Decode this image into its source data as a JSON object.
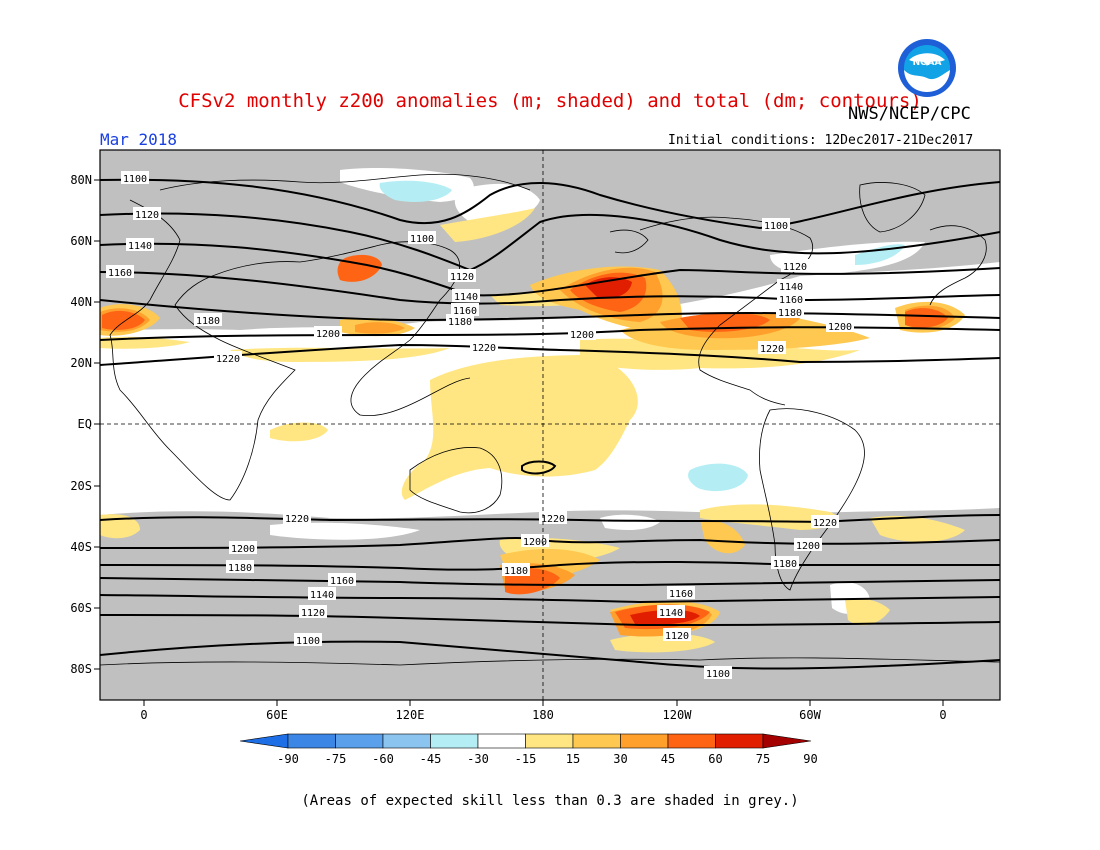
{
  "header": {
    "title": "CFSv2 monthly z200 anomalies (m; shaded) and total (dm; contours)",
    "agency": "NWS/NCEP/CPC",
    "month": "Mar 2018",
    "initial_conditions": "Initial conditions: 12Dec2017-21Dec2017",
    "logo_text": "NOAA"
  },
  "map": {
    "lat_labels": [
      "80N",
      "60N",
      "40N",
      "20N",
      "EQ",
      "20S",
      "40S",
      "60S",
      "80S"
    ],
    "lon_labels": [
      "0",
      "60E",
      "120E",
      "180",
      "120W",
      "60W",
      "0"
    ],
    "ocean_color": "#ffffff",
    "grey_color": "#c0c0c0",
    "contour_labels": [
      "1100",
      "1120",
      "1140",
      "1160",
      "1180",
      "1200",
      "1220"
    ]
  },
  "colorbar": {
    "tick_labels": [
      "-90",
      "-75",
      "-60",
      "-45",
      "-30",
      "-15",
      "15",
      "30",
      "45",
      "60",
      "75",
      "90"
    ],
    "colors": [
      "#1e6ee6",
      "#3c87e6",
      "#5aa0ea",
      "#8cc4f0",
      "#b4eef4",
      "#ffffff",
      "#ffe682",
      "#ffc850",
      "#ffa02d",
      "#ff6414",
      "#e11e00",
      "#a50000"
    ]
  },
  "footer": {
    "note": "(Areas of expected skill less than 0.3 are shaded in grey.)"
  }
}
